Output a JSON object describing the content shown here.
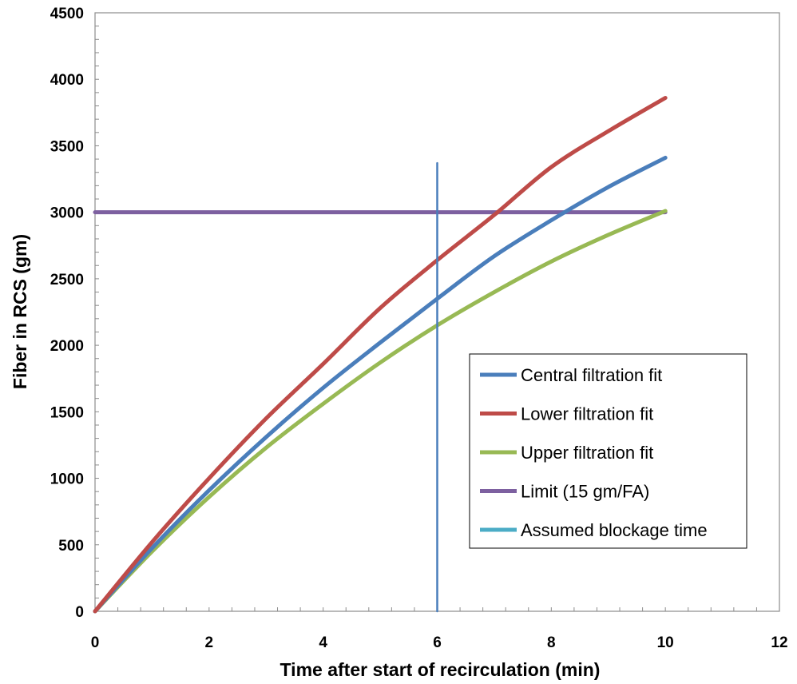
{
  "chart_data": {
    "type": "line",
    "xlabel": "Time after start of recirculation (min)",
    "ylabel": "Fiber in RCS (gm)",
    "xlim": [
      0,
      12
    ],
    "ylim": [
      0,
      4500
    ],
    "x_ticks": [
      "0",
      "2",
      "4",
      "6",
      "8",
      "10",
      "12"
    ],
    "y_ticks": [
      "0",
      "500",
      "1000",
      "1500",
      "2000",
      "2500",
      "3000",
      "3500",
      "4000",
      "4500"
    ],
    "grid": false,
    "legend_position": "bottom-right",
    "series": [
      {
        "name": "Central filtration fit",
        "color": "#4a7ebb",
        "x": [
          0,
          1,
          2,
          3,
          4,
          5,
          6,
          7,
          8,
          9,
          10
        ],
        "y": [
          0,
          475,
          910,
          1310,
          1680,
          2020,
          2350,
          2670,
          2940,
          3190,
          3410
        ]
      },
      {
        "name": "Lower filtration fit",
        "color": "#be4b48",
        "x": [
          0,
          1,
          2,
          3,
          4,
          5,
          6,
          7,
          8,
          9,
          10
        ],
        "y": [
          0,
          520,
          1000,
          1450,
          1860,
          2280,
          2640,
          2980,
          3340,
          3610,
          3860
        ]
      },
      {
        "name": "Upper filtration fit",
        "color": "#98b954",
        "x": [
          0,
          1,
          2,
          3,
          4,
          5,
          6,
          7,
          8,
          9,
          10
        ],
        "y": [
          0,
          450,
          860,
          1230,
          1560,
          1870,
          2150,
          2400,
          2630,
          2830,
          3010
        ]
      },
      {
        "name": "Limit (15 gm/FA)",
        "color": "#7d60a0",
        "x": [
          0,
          10
        ],
        "y": [
          3000,
          3000
        ]
      },
      {
        "name": "Assumed blockage time",
        "color": "#4bacc6",
        "x": [
          6,
          6
        ],
        "y": [
          0,
          3370
        ]
      }
    ]
  }
}
